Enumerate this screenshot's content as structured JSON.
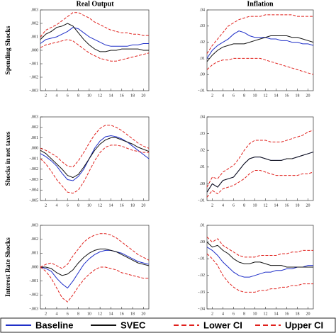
{
  "column_titles": [
    "Real Output",
    "Inflation"
  ],
  "row_labels": [
    "Spending Shocks",
    "Shocks in net taxes",
    "Interest Rate Shocks"
  ],
  "legend": [
    {
      "name": "Baseline",
      "color": "#1f2fc8",
      "dashed": false
    },
    {
      "name": "SVEC",
      "color": "#111111",
      "dashed": false
    },
    {
      "name": "Lower CI",
      "color": "#e0201c",
      "dashed": true
    },
    {
      "name": "Upper CI",
      "color": "#e0201c",
      "dashed": true
    }
  ],
  "chart_data": [
    {
      "type": "line",
      "x": [
        1,
        2,
        3,
        4,
        5,
        6,
        7,
        8,
        9,
        10,
        11,
        12,
        13,
        14,
        15,
        16,
        17,
        18,
        19,
        20,
        21
      ],
      "xlim": [
        1,
        21
      ],
      "xticks": [
        2,
        4,
        6,
        8,
        10,
        12,
        14,
        16,
        18,
        20
      ],
      "ylim": [
        -0.003,
        0.003
      ],
      "yticks": [
        {
          "value": 0.003,
          "label": ".003"
        },
        {
          "value": 0.002,
          "label": ".002"
        },
        {
          "value": 0.001,
          "label": ".001"
        },
        {
          "value": 0,
          "label": ".000"
        },
        {
          "value": -0.001,
          "label": "-.001"
        },
        {
          "value": -0.002,
          "label": "-.002"
        },
        {
          "value": -0.003,
          "label": "-.003"
        }
      ],
      "series": [
        {
          "values": [
            0.0005,
            0.0008,
            0.0009,
            0.001,
            0.0012,
            0.0014,
            0.0017,
            0.0016,
            0.0013,
            0.001,
            0.0008,
            0.0006,
            0.0004,
            0.0003,
            0.0003,
            0.0003,
            0.0003,
            0.0004,
            0.0004,
            0.0005,
            0.0005
          ]
        },
        {
          "values": [
            0.0008,
            0.0012,
            0.0014,
            0.0017,
            0.0018,
            0.002,
            0.0018,
            0.0013,
            0.0008,
            0.0004,
            0.0001,
            -0.0001,
            -0.0001,
            0,
            0,
            0.0001,
            0.0001,
            0.0001,
            0.0001,
            0,
            0
          ]
        },
        {
          "values": [
            0.0002,
            0.0004,
            0.0005,
            0.0006,
            0.0007,
            0.0008,
            0.0007,
            0.0004,
            0.0001,
            -0.0002,
            -0.0004,
            -0.0006,
            -0.0007,
            -0.0008,
            -0.0008,
            -0.0007,
            -0.0006,
            -0.0005,
            -0.0004,
            -0.0003,
            -0.0002
          ]
        },
        {
          "values": [
            0.001,
            0.0015,
            0.0017,
            0.0019,
            0.0022,
            0.0025,
            0.0028,
            0.0028,
            0.0026,
            0.0024,
            0.0021,
            0.0019,
            0.0017,
            0.0015,
            0.0014,
            0.0013,
            0.0013,
            0.0012,
            0.0012,
            0.0011,
            0.0011
          ]
        }
      ]
    },
    {
      "type": "line",
      "x": [
        1,
        2,
        3,
        4,
        5,
        6,
        7,
        8,
        9,
        10,
        11,
        12,
        13,
        14,
        15,
        16,
        17,
        18,
        19,
        20,
        21
      ],
      "xlim": [
        1,
        21
      ],
      "xticks": [
        2,
        4,
        6,
        8,
        10,
        12,
        14,
        16,
        18,
        20
      ],
      "ylim": [
        -0.01,
        0.04
      ],
      "yticks": [
        {
          "value": 0.04,
          "label": ".04"
        },
        {
          "value": 0.03,
          "label": ".03"
        },
        {
          "value": 0.02,
          "label": ".02"
        },
        {
          "value": 0.01,
          "label": ".01"
        },
        {
          "value": 0,
          "label": ".00"
        },
        {
          "value": -0.01,
          "label": "-.01"
        }
      ],
      "series": [
        {
          "values": [
            0.01,
            0.015,
            0.018,
            0.02,
            0.022,
            0.025,
            0.027,
            0.026,
            0.024,
            0.023,
            0.023,
            0.023,
            0.022,
            0.022,
            0.021,
            0.021,
            0.02,
            0.02,
            0.019,
            0.019,
            0.018
          ]
        },
        {
          "values": [
            0.008,
            0.012,
            0.015,
            0.017,
            0.018,
            0.019,
            0.019,
            0.019,
            0.02,
            0.021,
            0.022,
            0.023,
            0.024,
            0.024,
            0.024,
            0.024,
            0.023,
            0.023,
            0.022,
            0.021,
            0.02
          ]
        },
        {
          "values": [
            0.003,
            0.006,
            0.008,
            0.009,
            0.009,
            0.01,
            0.01,
            0.01,
            0.01,
            0.01,
            0.01,
            0.009,
            0.008,
            0.007,
            0.006,
            0.005,
            0.004,
            0.003,
            0.002,
            0.001,
            0
          ]
        },
        {
          "values": [
            0.013,
            0.018,
            0.022,
            0.026,
            0.03,
            0.032,
            0.034,
            0.035,
            0.036,
            0.036,
            0.036,
            0.037,
            0.037,
            0.037,
            0.037,
            0.037,
            0.037,
            0.036,
            0.036,
            0.036,
            0.036
          ]
        }
      ]
    },
    {
      "type": "line",
      "x": [
        1,
        2,
        3,
        4,
        5,
        6,
        7,
        8,
        9,
        10,
        11,
        12,
        13,
        14,
        15,
        16,
        17,
        18,
        19,
        20,
        21
      ],
      "xlim": [
        1,
        21
      ],
      "xticks": [
        2,
        4,
        6,
        8,
        10,
        12,
        14,
        16,
        18,
        20
      ],
      "ylim": [
        -0.005,
        0.003
      ],
      "yticks": [
        {
          "value": 0.003,
          "label": ".003"
        },
        {
          "value": 0.002,
          "label": ".002"
        },
        {
          "value": 0.001,
          "label": ".001"
        },
        {
          "value": 0,
          "label": ".000"
        },
        {
          "value": -0.001,
          "label": "-.001"
        },
        {
          "value": -0.002,
          "label": "-.002"
        },
        {
          "value": -0.003,
          "label": "-.003"
        },
        {
          "value": -0.004,
          "label": "-.004"
        },
        {
          "value": -0.005,
          "label": "-.005"
        }
      ],
      "series": [
        {
          "values": [
            -0.0005,
            -0.0008,
            -0.0012,
            -0.0017,
            -0.0024,
            -0.003,
            -0.0031,
            -0.0027,
            -0.002,
            -0.001,
            0,
            0.0007,
            0.0011,
            0.0012,
            0.0011,
            0.0009,
            0.0006,
            0.0002,
            -0.0002,
            -0.0006,
            -0.001
          ]
        },
        {
          "values": [
            -0.0002,
            -0.0005,
            -0.001,
            -0.0015,
            -0.002,
            -0.0026,
            -0.0028,
            -0.0025,
            -0.0018,
            -0.001,
            -0.0002,
            0.0004,
            0.0008,
            0.001,
            0.001,
            0.0008,
            0.0006,
            0.0004,
            0.0001,
            -0.0001,
            -0.0003
          ]
        },
        {
          "values": [
            -0.001,
            -0.0015,
            -0.0022,
            -0.003,
            -0.0036,
            -0.0042,
            -0.0043,
            -0.004,
            -0.0032,
            -0.0022,
            -0.0012,
            -0.0004,
            0.0001,
            0.0003,
            0.0003,
            0.0002,
            0,
            -0.0002,
            -0.0003,
            -0.0004,
            -0.0004
          ]
        },
        {
          "values": [
            0,
            -0.0002,
            -0.0005,
            -0.0008,
            -0.0013,
            -0.0017,
            -0.0018,
            -0.0012,
            -0.0004,
            0.0005,
            0.0013,
            0.0019,
            0.0022,
            0.0022,
            0.002,
            0.0017,
            0.0013,
            0.0009,
            0.0005,
            0.0002,
            0
          ]
        }
      ]
    },
    {
      "type": "line",
      "x": [
        1,
        2,
        3,
        4,
        5,
        6,
        7,
        8,
        9,
        10,
        11,
        12,
        13,
        14,
        15,
        16,
        17,
        18,
        19,
        20,
        21
      ],
      "xlim": [
        1,
        21
      ],
      "xticks": [
        2,
        4,
        6,
        8,
        10,
        12,
        14,
        16,
        18,
        20
      ],
      "ylim": [
        -0.01,
        0.04
      ],
      "yticks": [
        {
          "value": 0.04,
          "label": ".04"
        },
        {
          "value": 0.03,
          "label": ".03"
        },
        {
          "value": 0.02,
          "label": ".02"
        },
        {
          "value": 0.01,
          "label": ".01"
        },
        {
          "value": 0,
          "label": ".00"
        },
        {
          "value": -0.01,
          "label": "-.01"
        }
      ],
      "series": [
        {
          "values": [
            -0.005,
            0,
            -0.002,
            0.002,
            0.003,
            0.004,
            0.008,
            0.012,
            0.015,
            0.016,
            0.016,
            0.015,
            0.014,
            0.014,
            0.014,
            0.015,
            0.015,
            0.016,
            0.017,
            0.018,
            0.019
          ]
        },
        {
          "values": [
            -0.005,
            0,
            -0.002,
            0.002,
            0.003,
            0.004,
            0.008,
            0.012,
            0.015,
            0.016,
            0.016,
            0.015,
            0.014,
            0.014,
            0.014,
            0.015,
            0.015,
            0.016,
            0.017,
            0.018,
            0.019
          ]
        },
        {
          "values": [
            -0.008,
            -0.004,
            -0.006,
            -0.003,
            -0.002,
            -0.001,
            0.001,
            0.003,
            0.006,
            0.008,
            0.008,
            0.007,
            0.006,
            0.005,
            0.005,
            0.005,
            0.005,
            0.005,
            0.006,
            0.006,
            0.007
          ]
        },
        {
          "values": [
            -0.002,
            0.004,
            0.003,
            0.007,
            0.009,
            0.011,
            0.015,
            0.02,
            0.024,
            0.026,
            0.026,
            0.026,
            0.025,
            0.025,
            0.025,
            0.026,
            0.027,
            0.028,
            0.029,
            0.031,
            0.032
          ]
        }
      ]
    },
    {
      "type": "line",
      "x": [
        1,
        2,
        3,
        4,
        5,
        6,
        7,
        8,
        9,
        10,
        11,
        12,
        13,
        14,
        15,
        16,
        17,
        18,
        19,
        20,
        21
      ],
      "xlim": [
        1,
        21
      ],
      "xticks": [
        2,
        4,
        6,
        8,
        10,
        12,
        14,
        16,
        18,
        20
      ],
      "ylim": [
        -0.003,
        0.003
      ],
      "yticks": [
        {
          "value": 0.003,
          "label": ".003"
        },
        {
          "value": 0.002,
          "label": ".002"
        },
        {
          "value": 0.001,
          "label": ".001"
        },
        {
          "value": 0,
          "label": ".000"
        },
        {
          "value": -0.001,
          "label": "-.001"
        },
        {
          "value": -0.002,
          "label": "-.002"
        },
        {
          "value": -0.003,
          "label": "-.003"
        }
      ],
      "series": [
        {
          "values": [
            0,
            -0.0001,
            -0.0003,
            -0.0008,
            -0.0012,
            -0.0015,
            -0.001,
            -0.0004,
            0.0002,
            0.0006,
            0.0009,
            0.0011,
            0.0012,
            0.0012,
            0.0011,
            0.001,
            0.0008,
            0.0006,
            0.0004,
            0.0003,
            0.0002
          ]
        },
        {
          "values": [
            0,
            0,
            -0.0001,
            -0.0004,
            -0.0006,
            -0.0005,
            -0.0002,
            0.0003,
            0.0007,
            0.001,
            0.0012,
            0.0013,
            0.0013,
            0.0012,
            0.0011,
            0.0009,
            0.0007,
            0.0005,
            0.0003,
            0.0002,
            0.0001
          ]
        },
        {
          "values": [
            0,
            -0.0003,
            -0.0008,
            -0.0015,
            -0.0022,
            -0.0025,
            -0.002,
            -0.0014,
            -0.0009,
            -0.0005,
            -0.0002,
            0,
            0,
            -0.0001,
            -0.0002,
            -0.0004,
            -0.0005,
            -0.0006,
            -0.0007,
            -0.0008,
            -0.0008
          ]
        },
        {
          "values": [
            0,
            0.0002,
            0.0003,
            0.0001,
            -0.0001,
            0.0002,
            0.0008,
            0.0013,
            0.0018,
            0.0021,
            0.0023,
            0.0024,
            0.0024,
            0.0023,
            0.0021,
            0.0018,
            0.0015,
            0.0012,
            0.0009,
            0.0007,
            0.0005
          ]
        }
      ]
    },
    {
      "type": "line",
      "x": [
        1,
        2,
        3,
        4,
        5,
        6,
        7,
        8,
        9,
        10,
        11,
        12,
        13,
        14,
        15,
        16,
        17,
        18,
        19,
        20,
        21
      ],
      "xlim": [
        1,
        21
      ],
      "xticks": [
        2,
        4,
        6,
        8,
        10,
        12,
        14,
        16,
        18,
        20
      ],
      "ylim": [
        -0.04,
        0.01
      ],
      "yticks": [
        {
          "value": 0.01,
          "label": ".01"
        },
        {
          "value": 0,
          "label": ".00"
        },
        {
          "value": -0.01,
          "label": "-.01"
        },
        {
          "value": -0.02,
          "label": "-.02"
        },
        {
          "value": -0.03,
          "label": "-.03"
        },
        {
          "value": -0.04,
          "label": "-.04"
        }
      ],
      "series": [
        {
          "values": [
            -0.003,
            -0.005,
            -0.008,
            -0.012,
            -0.015,
            -0.018,
            -0.02,
            -0.021,
            -0.021,
            -0.02,
            -0.019,
            -0.018,
            -0.018,
            -0.017,
            -0.017,
            -0.016,
            -0.016,
            -0.015,
            -0.015,
            -0.014,
            -0.014
          ]
        },
        {
          "values": [
            0,
            -0.003,
            -0.002,
            -0.005,
            -0.007,
            -0.01,
            -0.012,
            -0.013,
            -0.013,
            -0.012,
            -0.012,
            -0.013,
            -0.014,
            -0.014,
            -0.014,
            -0.015,
            -0.015,
            -0.015,
            -0.015,
            -0.015,
            -0.015
          ]
        },
        {
          "values": [
            -0.007,
            -0.01,
            -0.014,
            -0.02,
            -0.024,
            -0.027,
            -0.029,
            -0.03,
            -0.03,
            -0.03,
            -0.029,
            -0.029,
            -0.028,
            -0.028,
            -0.027,
            -0.027,
            -0.026,
            -0.026,
            -0.025,
            -0.025,
            -0.025
          ]
        },
        {
          "values": [
            0.003,
            0,
            0.002,
            -0.002,
            -0.004,
            -0.006,
            -0.008,
            -0.009,
            -0.009,
            -0.009,
            -0.008,
            -0.008,
            -0.008,
            -0.008,
            -0.007,
            -0.007,
            -0.006,
            -0.006,
            -0.005,
            -0.005,
            -0.005
          ]
        }
      ]
    }
  ]
}
